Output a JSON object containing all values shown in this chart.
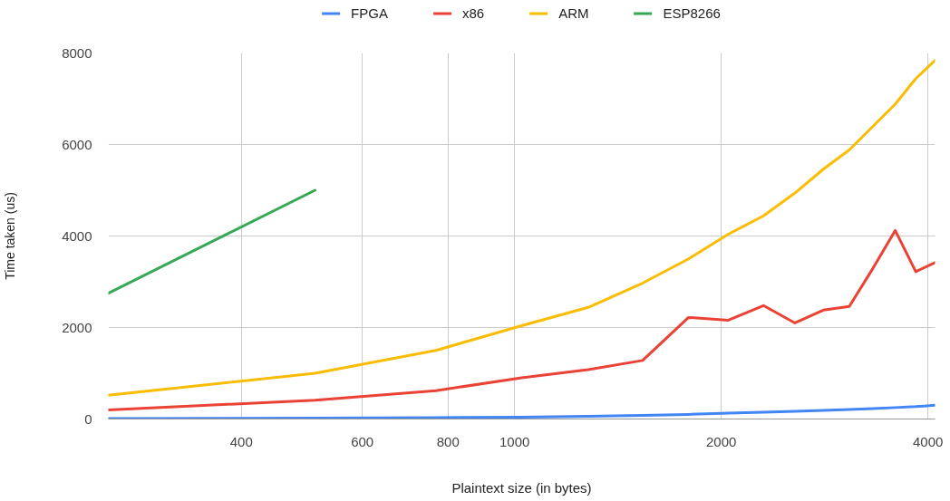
{
  "chart_data": {
    "type": "line",
    "xlabel": "Plaintext size (in bytes)",
    "ylabel": "Time taken (us)",
    "x": [
      256,
      512,
      768,
      1024,
      1280,
      1536,
      1792,
      2048,
      2304,
      2560,
      2816,
      3072,
      3328,
      3584,
      3840,
      4096
    ],
    "series": [
      {
        "name": "FPGA",
        "color": "#4285f4",
        "values": [
          10,
          20,
          30,
          40,
          60,
          80,
          100,
          130,
          150,
          170,
          190,
          210,
          230,
          250,
          270,
          300
        ]
      },
      {
        "name": "x86",
        "color": "#ea4335",
        "values": [
          200,
          410,
          620,
          900,
          1080,
          1280,
          2220,
          2160,
          2480,
          2100,
          2380,
          2460,
          3300,
          4120,
          3220,
          3420
        ]
      },
      {
        "name": "ARM",
        "color": "#fbbc04",
        "values": [
          520,
          1000,
          1500,
          2040,
          2440,
          2970,
          3500,
          4040,
          4440,
          4940,
          5460,
          5880,
          6400,
          6880,
          7440,
          7840
        ]
      },
      {
        "name": "ESP8266",
        "color": "#34a853",
        "values": [
          2750,
          5000,
          null,
          null,
          null,
          null,
          null,
          null,
          null,
          null,
          null,
          null,
          null,
          null,
          null,
          null
        ]
      }
    ],
    "xlim": [
      256,
      4096
    ],
    "xticks": [
      400,
      600,
      800,
      1000,
      2000,
      4000
    ],
    "ylim": [
      0,
      8000
    ],
    "yticks": [
      0,
      2000,
      4000,
      6000,
      8000
    ],
    "log": "x",
    "grid": true,
    "legend": "top"
  }
}
